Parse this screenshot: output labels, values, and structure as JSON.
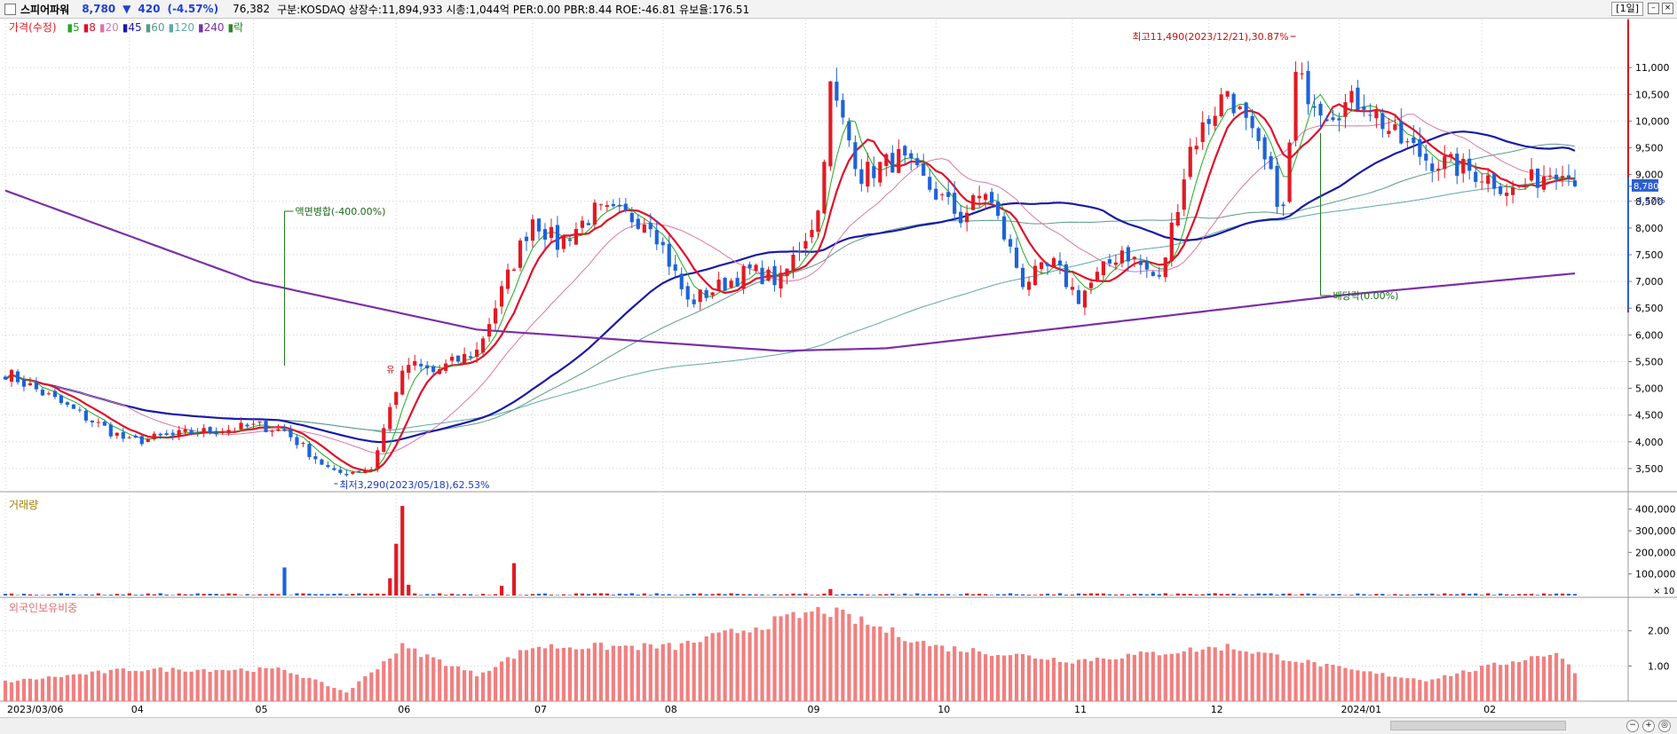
{
  "header": {
    "stock_name": "스피어파워",
    "price": "8,780",
    "change_symbol": "▼",
    "change": "420",
    "change_pct": "(-4.57%)",
    "volume": "76,382",
    "info": "구분:KOSDAQ 상장수:11,894,933 시총:1,044억 PER:0.00 PBR:8.44 ROE:-46.81 유보율:176.51",
    "period": "[1일]"
  },
  "legend": {
    "price_label": "가격(수정)",
    "ma": [
      {
        "label": "5",
        "color": "#22aa22"
      },
      {
        "label": "8",
        "color": "#e0102a"
      },
      {
        "label": "20",
        "color": "#d878a8"
      },
      {
        "label": "45",
        "color": "#1a1aa8"
      },
      {
        "label": "60",
        "color": "#5a9a8a"
      },
      {
        "label": "120",
        "color": "#60a8a8"
      },
      {
        "label": "240",
        "color": "#7b2fa8"
      },
      {
        "label": "락",
        "color": "#2a8a2a"
      }
    ]
  },
  "colors": {
    "up": "#e01b24",
    "down": "#1e63d6",
    "bg": "#ffffff",
    "grid": "#d0d0d0",
    "volume_up": "#e01b24",
    "volume_down": "#1e63d6",
    "foreign": "#f08080"
  },
  "annotations": {
    "high": "최고11,490(2023/12/21),30.87%",
    "low": "최저3,290(2023/05/18),62.53%",
    "split": "액면병합(-400.00%)",
    "dividend": "배당락(0.00%)",
    "mark": "유"
  },
  "current_tag": {
    "price": "8,780",
    "pct": "-4.57%"
  },
  "volume_panel": {
    "title": "거래량",
    "ticks": [
      "400,000",
      "300,000",
      "200,000",
      "100,000"
    ],
    "unit": "× 10"
  },
  "foreign_panel": {
    "title": "외국인보유비중",
    "ticks": [
      "2.00",
      "1.00"
    ]
  },
  "chart_data": [
    {
      "type": "candlestick",
      "title": "스피어파워",
      "ylim": [
        3100,
        11900
      ],
      "y_ticks": [
        "11,000",
        "10,500",
        "10,000",
        "9,500",
        "9,000",
        "8,500",
        "8,000",
        "7,500",
        "7,000",
        "6,500",
        "6,000",
        "5,500",
        "5,000",
        "4,500",
        "4,000",
        "3,500"
      ],
      "x_labels": [
        "2023/03/06",
        "04",
        "05",
        "06",
        "07",
        "08",
        "09",
        "10",
        "11",
        "12",
        "2024/01",
        "02"
      ],
      "high_point": {
        "price": 11490,
        "date": "2023/12/21",
        "pct": 30.87
      },
      "low_point": {
        "price": 3290,
        "date": "2023/05/18",
        "pct": 62.53
      },
      "last_close": 8780,
      "anchors": [
        {
          "date": "2023/03/06",
          "close": 5300
        },
        {
          "date": "2023/04/03",
          "close": 4000
        },
        {
          "date": "2023/04/14",
          "close": 4150
        },
        {
          "date": "2023/05/02",
          "close": 4300
        },
        {
          "date": "2023/05/08",
          "close": 4200
        },
        {
          "date": "2023/05/18",
          "close": 3400
        },
        {
          "date": "2023/05/26",
          "close": 3500
        },
        {
          "date": "2023/06/01",
          "close": 5000
        },
        {
          "date": "2023/06/05",
          "close": 5450
        },
        {
          "date": "2023/06/09",
          "close": 5300
        },
        {
          "date": "2023/06/20",
          "close": 5700
        },
        {
          "date": "2023/07/03",
          "close": 8200
        },
        {
          "date": "2023/07/07",
          "close": 7700
        },
        {
          "date": "2023/07/17",
          "close": 8300
        },
        {
          "date": "2023/07/28",
          "close": 8150
        },
        {
          "date": "2023/08/07",
          "close": 6600
        },
        {
          "date": "2023/08/21",
          "close": 7200
        },
        {
          "date": "2023/08/28",
          "close": 7000
        },
        {
          "date": "2023/09/05",
          "close": 8300
        },
        {
          "date": "2023/09/07",
          "close": 10600
        },
        {
          "date": "2023/09/14",
          "close": 9000
        },
        {
          "date": "2023/09/22",
          "close": 9300
        },
        {
          "date": "2023/10/06",
          "close": 8200
        },
        {
          "date": "2023/10/12",
          "close": 8700
        },
        {
          "date": "2023/10/20",
          "close": 7000
        },
        {
          "date": "2023/10/27",
          "close": 7300
        },
        {
          "date": "2023/11/02",
          "close": 6700
        },
        {
          "date": "2023/11/13",
          "close": 7600
        },
        {
          "date": "2023/11/21",
          "close": 7000
        },
        {
          "date": "2023/11/28",
          "close": 9500
        },
        {
          "date": "2023/12/06",
          "close": 10600
        },
        {
          "date": "2023/12/14",
          "close": 9200
        },
        {
          "date": "2023/12/19",
          "close": 8300
        },
        {
          "date": "2023/12/21",
          "close": 10800
        },
        {
          "date": "2023/12/28",
          "close": 10200
        },
        {
          "date": "2024/01/05",
          "close": 10400
        },
        {
          "date": "2024/01/12",
          "close": 9700
        },
        {
          "date": "2024/01/19",
          "close": 9300
        },
        {
          "date": "2024/02/01",
          "close": 9000
        },
        {
          "date": "2024/02/08",
          "close": 8700
        },
        {
          "date": "2024/02/15",
          "close": 9000
        },
        {
          "date": "2024/02/20",
          "close": 9200
        },
        {
          "date": "2024/02/22",
          "close": 8780
        }
      ],
      "moving_average_240": [
        {
          "date": "2023/03/06",
          "value": 8700
        },
        {
          "date": "2023/05/01",
          "value": 7000
        },
        {
          "date": "2023/06/20",
          "value": 6100
        },
        {
          "date": "2023/08/28",
          "value": 5700
        },
        {
          "date": "2023/09/20",
          "value": 5750
        },
        {
          "date": "2023/11/01",
          "value": 6150
        },
        {
          "date": "2024/01/02",
          "value": 6750
        },
        {
          "date": "2024/02/22",
          "value": 7150
        }
      ]
    },
    {
      "type": "bar",
      "title": "거래량",
      "ylim": [
        0,
        440000
      ],
      "spikes": [
        {
          "date": "2023/05/08",
          "value": 130000
        },
        {
          "date": "2023/05/31",
          "value": 80000
        },
        {
          "date": "2023/06/01",
          "value": 240000
        },
        {
          "date": "2023/06/02",
          "value": 415000
        },
        {
          "date": "2023/06/05",
          "value": 50000
        },
        {
          "date": "2023/06/26",
          "value": 45000
        },
        {
          "date": "2023/06/28",
          "value": 150000
        },
        {
          "date": "2023/09/07",
          "value": 30000
        }
      ]
    },
    {
      "type": "bar",
      "title": "외국인보유비중",
      "ylim": [
        0,
        2.8
      ],
      "anchors": [
        {
          "date": "2023/03/06",
          "value": 0.55
        },
        {
          "date": "2023/04/03",
          "value": 0.9
        },
        {
          "date": "2023/05/08",
          "value": 0.9
        },
        {
          "date": "2023/05/22",
          "value": 0.25
        },
        {
          "date": "2023/06/02",
          "value": 1.55
        },
        {
          "date": "2023/06/20",
          "value": 0.75
        },
        {
          "date": "2023/07/03",
          "value": 1.55
        },
        {
          "date": "2023/08/03",
          "value": 1.55
        },
        {
          "date": "2023/09/06",
          "value": 2.6
        },
        {
          "date": "2023/10/02",
          "value": 1.55
        },
        {
          "date": "2023/11/01",
          "value": 1.15
        },
        {
          "date": "2023/12/06",
          "value": 1.55
        },
        {
          "date": "2024/01/02",
          "value": 0.9
        },
        {
          "date": "2024/01/19",
          "value": 0.6
        },
        {
          "date": "2024/02/19",
          "value": 1.4
        },
        {
          "date": "2024/02/22",
          "value": 0.8
        }
      ]
    }
  ]
}
